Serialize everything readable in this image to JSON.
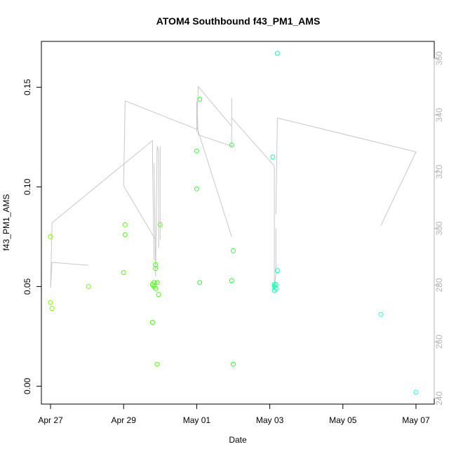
{
  "chart_data": {
    "type": "scatter",
    "title": "ATOM4 Southbound f43_PM1_AMS",
    "xlabel": "Date",
    "ylabel": "f43_PM1_AMS",
    "xlim": [
      "2016-04-26T18:00",
      "2016-05-07T12:00"
    ],
    "ylim": [
      -0.009,
      0.173
    ],
    "y2lim": [
      238,
      366
    ],
    "x_ticks": [
      {
        "label": "Apr 27",
        "x": "2016-04-27T00:00"
      },
      {
        "label": "Apr 29",
        "x": "2016-04-29T00:00"
      },
      {
        "label": "May 01",
        "x": "2016-05-01T00:00"
      },
      {
        "label": "May 03",
        "x": "2016-05-03T00:00"
      },
      {
        "label": "May 05",
        "x": "2016-05-05T00:00"
      },
      {
        "label": "May 07",
        "x": "2016-05-07T00:00"
      }
    ],
    "y_ticks": [
      {
        "label": "0.00",
        "y": 0.0
      },
      {
        "label": "0.05",
        "y": 0.05
      },
      {
        "label": "0.10",
        "y": 0.1
      },
      {
        "label": "0.15",
        "y": 0.15
      }
    ],
    "y2_ticks": [
      {
        "label": "240",
        "y": 240
      },
      {
        "label": "260",
        "y": 260
      },
      {
        "label": "280",
        "y": 280
      },
      {
        "label": "300",
        "y": 300
      },
      {
        "label": "320",
        "y": 320
      },
      {
        "label": "340",
        "y": 340
      },
      {
        "label": "360",
        "y": 360
      }
    ],
    "grid": false,
    "series": [
      {
        "role": "points",
        "axis": "left",
        "points": [
          {
            "x": "2016-04-27T00:00",
            "y": 0.075,
            "color": "#7cfc00"
          },
          {
            "x": "2016-04-27T00:00",
            "y": 0.042,
            "color": "#7cfc00"
          },
          {
            "x": "2016-04-27T01:00",
            "y": 0.039,
            "color": "#7cfc00"
          },
          {
            "x": "2016-04-28T01:00",
            "y": 0.05,
            "color": "#7cfc00"
          },
          {
            "x": "2016-04-29T00:00",
            "y": 0.057,
            "color": "#55ff00"
          },
          {
            "x": "2016-04-29T01:00",
            "y": 0.081,
            "color": "#55ff00"
          },
          {
            "x": "2016-04-29T01:00",
            "y": 0.076,
            "color": "#55ff00"
          },
          {
            "x": "2016-04-29T19:00",
            "y": 0.032,
            "color": "#44ff11"
          },
          {
            "x": "2016-04-29T19:00",
            "y": 0.051,
            "color": "#44ff11"
          },
          {
            "x": "2016-04-29T20:00",
            "y": 0.052,
            "color": "#44ff11"
          },
          {
            "x": "2016-04-29T20:00",
            "y": 0.05,
            "color": "#44ff11"
          },
          {
            "x": "2016-04-29T21:00",
            "y": 0.049,
            "color": "#44ff11"
          },
          {
            "x": "2016-04-29T21:00",
            "y": 0.059,
            "color": "#44ff11"
          },
          {
            "x": "2016-04-29T21:00",
            "y": 0.061,
            "color": "#44ff11"
          },
          {
            "x": "2016-04-29T22:00",
            "y": 0.052,
            "color": "#44ff11"
          },
          {
            "x": "2016-04-29T22:00",
            "y": 0.011,
            "color": "#44ff11"
          },
          {
            "x": "2016-04-29T23:00",
            "y": 0.046,
            "color": "#44ff11"
          },
          {
            "x": "2016-04-30T00:00",
            "y": 0.081,
            "color": "#44ff11"
          },
          {
            "x": "2016-05-01T00:00",
            "y": 0.118,
            "color": "#33ff33"
          },
          {
            "x": "2016-05-01T00:00",
            "y": 0.099,
            "color": "#33ff33"
          },
          {
            "x": "2016-05-01T02:00",
            "y": 0.144,
            "color": "#33ff33"
          },
          {
            "x": "2016-05-01T02:00",
            "y": 0.052,
            "color": "#33ff33"
          },
          {
            "x": "2016-05-01T23:00",
            "y": 0.121,
            "color": "#2bff3c"
          },
          {
            "x": "2016-05-01T23:00",
            "y": 0.053,
            "color": "#2bff3c"
          },
          {
            "x": "2016-05-02T00:00",
            "y": 0.068,
            "color": "#2bff3c"
          },
          {
            "x": "2016-05-02T00:00",
            "y": 0.011,
            "color": "#2bff3c"
          },
          {
            "x": "2016-05-03T02:00",
            "y": 0.115,
            "color": "#11ffaa"
          },
          {
            "x": "2016-05-03T03:00",
            "y": 0.051,
            "color": "#11ffaa"
          },
          {
            "x": "2016-05-03T03:00",
            "y": 0.05,
            "color": "#11ffaa"
          },
          {
            "x": "2016-05-03T03:00",
            "y": 0.048,
            "color": "#11ffaa"
          },
          {
            "x": "2016-05-03T04:00",
            "y": 0.049,
            "color": "#11ffaa"
          },
          {
            "x": "2016-05-03T04:00",
            "y": 0.051,
            "color": "#11ffaa"
          },
          {
            "x": "2016-05-03T05:00",
            "y": 0.058,
            "color": "#11ffaa"
          },
          {
            "x": "2016-05-03T05:00",
            "y": 0.167,
            "color": "#11ffaa"
          },
          {
            "x": "2016-05-06T01:00",
            "y": 0.036,
            "color": "#22ffdd"
          },
          {
            "x": "2016-05-07T00:00",
            "y": -0.003,
            "color": "#22ffdd"
          }
        ]
      },
      {
        "role": "line",
        "axis": "right",
        "color": "#c8c8c8",
        "segments": [
          [
            {
              "x": "2016-04-27T00:00",
              "y": 279
            },
            {
              "x": "2016-04-27T01:00",
              "y": 288
            },
            {
              "x": "2016-04-28T01:00",
              "y": 287
            }
          ],
          [
            {
              "x": "2016-04-27T00:00",
              "y": 279
            },
            {
              "x": "2016-04-27T01:00",
              "y": 302
            },
            {
              "x": "2016-04-29T19:00",
              "y": 331
            },
            {
              "x": "2016-04-29T19:00",
              "y": 325
            },
            {
              "x": "2016-04-29T20:00",
              "y": 289
            }
          ],
          [
            {
              "x": "2016-04-29T00:00",
              "y": 315
            },
            {
              "x": "2016-04-29T01:00",
              "y": 345
            },
            {
              "x": "2016-05-01T00:00",
              "y": 335
            },
            {
              "x": "2016-05-01T01:00",
              "y": 350
            },
            {
              "x": "2016-05-01T23:00",
              "y": 336
            }
          ],
          [
            {
              "x": "2016-04-29T00:00",
              "y": 315
            },
            {
              "x": "2016-04-29T21:00",
              "y": 296
            }
          ],
          [
            {
              "x": "2016-04-29T20:00",
              "y": 323
            },
            {
              "x": "2016-04-29T21:00",
              "y": 283
            },
            {
              "x": "2016-04-29T22:00",
              "y": 329
            },
            {
              "x": "2016-04-29T23:00",
              "y": 327
            },
            {
              "x": "2016-04-29T23:00",
              "y": 293
            }
          ],
          [
            {
              "x": "2016-04-30T00:00",
              "y": 329
            },
            {
              "x": "2016-04-30T00:00",
              "y": 296
            }
          ],
          [
            {
              "x": "2016-05-01T00:00",
              "y": 334
            },
            {
              "x": "2016-05-01T00:00",
              "y": 345
            },
            {
              "x": "2016-05-01T01:00",
              "y": 333
            },
            {
              "x": "2016-05-01T23:00",
              "y": 329
            }
          ],
          [
            {
              "x": "2016-05-01T00:00",
              "y": 336
            },
            {
              "x": "2016-05-01T23:00",
              "y": 297
            }
          ],
          [
            {
              "x": "2016-05-01T23:00",
              "y": 346
            },
            {
              "x": "2016-05-01T23:00",
              "y": 329
            }
          ],
          [
            {
              "x": "2016-05-01T23:00",
              "y": 339
            },
            {
              "x": "2016-05-03T03:00",
              "y": 322
            },
            {
              "x": "2016-05-03T03:00",
              "y": 279
            },
            {
              "x": "2016-05-03T04:00",
              "y": 284
            },
            {
              "x": "2016-05-03T04:00",
              "y": 300
            }
          ],
          [
            {
              "x": "2016-05-03T04:00",
              "y": 305
            },
            {
              "x": "2016-05-03T05:00",
              "y": 339
            },
            {
              "x": "2016-05-07T00:00",
              "y": 327
            },
            {
              "x": "2016-05-06T01:00",
              "y": 301
            }
          ]
        ]
      }
    ]
  }
}
